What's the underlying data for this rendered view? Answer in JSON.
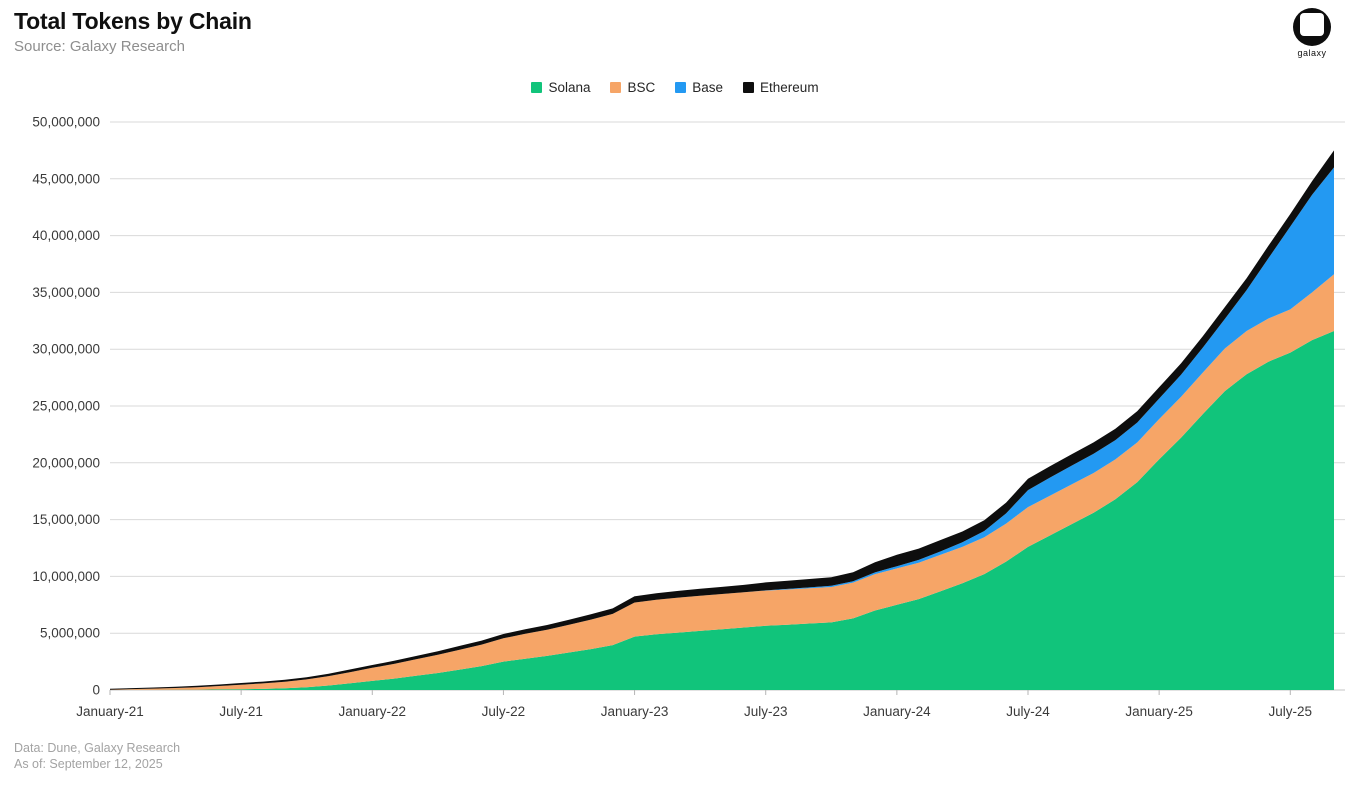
{
  "header": {
    "title": "Total Tokens by Chain",
    "subtitle": "Source: Galaxy Research"
  },
  "logo": {
    "brand": "galaxy"
  },
  "footer": {
    "line1": "Data: Dune, Galaxy Research",
    "line2": "As of: September 12, 2025"
  },
  "legend": [
    {
      "label": "Solana",
      "color": "#11c47b"
    },
    {
      "label": "BSC",
      "color": "#f6a567"
    },
    {
      "label": "Base",
      "color": "#2399f2"
    },
    {
      "label": "Ethereum",
      "color": "#0e0e0e"
    }
  ],
  "chart_data": {
    "type": "area",
    "stacked": true,
    "title": "Total Tokens by Chain",
    "unit": "tokens (values stored in millions)",
    "grid": "horizontal",
    "legend_position": "top-center",
    "ylim_millions": [
      0,
      50
    ],
    "x_months": [
      "Jan-21",
      "Feb-21",
      "Mar-21",
      "Apr-21",
      "May-21",
      "Jun-21",
      "Jul-21",
      "Aug-21",
      "Sep-21",
      "Oct-21",
      "Nov-21",
      "Dec-21",
      "Jan-22",
      "Feb-22",
      "Mar-22",
      "Apr-22",
      "May-22",
      "Jun-22",
      "Jul-22",
      "Aug-22",
      "Sep-22",
      "Oct-22",
      "Nov-22",
      "Dec-22",
      "Jan-23",
      "Feb-23",
      "Mar-23",
      "Apr-23",
      "May-23",
      "Jun-23",
      "Jul-23",
      "Aug-23",
      "Sep-23",
      "Oct-23",
      "Nov-23",
      "Dec-23",
      "Jan-24",
      "Feb-24",
      "Mar-24",
      "Apr-24",
      "May-24",
      "Jun-24",
      "Jul-24",
      "Aug-24",
      "Sep-24",
      "Oct-24",
      "Nov-24",
      "Dec-24",
      "Jan-25",
      "Feb-25",
      "Mar-25",
      "Apr-25",
      "May-25",
      "Jun-25",
      "Jul-25",
      "Aug-25",
      "Sep-25"
    ],
    "series": [
      {
        "name": "Solana",
        "color": "#11c47b",
        "values_millions": [
          0,
          0.01,
          0.01,
          0.02,
          0.03,
          0.05,
          0.07,
          0.1,
          0.15,
          0.25,
          0.4,
          0.6,
          0.8,
          1.0,
          1.25,
          1.5,
          1.8,
          2.1,
          2.5,
          2.75,
          3.0,
          3.3,
          3.6,
          3.95,
          4.7,
          4.9,
          5.05,
          5.2,
          5.35,
          5.5,
          5.65,
          5.75,
          5.85,
          5.95,
          6.3,
          7.0,
          7.5,
          8.0,
          8.7,
          9.4,
          10.2,
          11.3,
          12.6,
          13.6,
          14.6,
          15.6,
          16.8,
          18.3,
          20.3,
          22.2,
          24.3,
          26.3,
          27.8,
          28.9,
          29.7,
          30.8,
          31.6
        ]
      },
      {
        "name": "BSC",
        "color": "#f6a567",
        "values_millions": [
          0.03,
          0.07,
          0.11,
          0.16,
          0.22,
          0.3,
          0.4,
          0.48,
          0.57,
          0.68,
          0.82,
          0.98,
          1.15,
          1.3,
          1.45,
          1.6,
          1.75,
          1.9,
          2.05,
          2.2,
          2.3,
          2.45,
          2.6,
          2.75,
          3.0,
          3.05,
          3.08,
          3.1,
          3.1,
          3.1,
          3.1,
          3.1,
          3.1,
          3.12,
          3.15,
          3.2,
          3.2,
          3.2,
          3.2,
          3.2,
          3.25,
          3.35,
          3.5,
          3.5,
          3.5,
          3.5,
          3.5,
          3.5,
          3.55,
          3.6,
          3.65,
          3.75,
          3.8,
          3.8,
          3.8,
          4.2,
          5.0
        ]
      },
      {
        "name": "Base",
        "color": "#2399f2",
        "values_millions": [
          0,
          0,
          0,
          0,
          0,
          0,
          0,
          0,
          0,
          0,
          0,
          0,
          0,
          0,
          0,
          0,
          0,
          0,
          0,
          0,
          0,
          0,
          0,
          0,
          0,
          0,
          0,
          0,
          0,
          0,
          0.02,
          0.05,
          0.08,
          0.1,
          0.12,
          0.15,
          0.2,
          0.25,
          0.3,
          0.4,
          0.55,
          0.9,
          1.5,
          1.6,
          1.65,
          1.7,
          1.7,
          1.75,
          1.8,
          1.95,
          2.2,
          2.6,
          3.6,
          5.3,
          7.3,
          8.6,
          9.4
        ]
      },
      {
        "name": "Ethereum",
        "color": "#0e0e0e",
        "values_millions": [
          0.08,
          0.09,
          0.1,
          0.11,
          0.12,
          0.13,
          0.15,
          0.16,
          0.18,
          0.19,
          0.21,
          0.23,
          0.25,
          0.27,
          0.29,
          0.31,
          0.33,
          0.35,
          0.38,
          0.4,
          0.42,
          0.44,
          0.46,
          0.48,
          0.55,
          0.57,
          0.59,
          0.61,
          0.63,
          0.65,
          0.7,
          0.72,
          0.74,
          0.76,
          0.8,
          0.9,
          1.0,
          1.0,
          1.0,
          0.95,
          0.95,
          0.95,
          1.0,
          1.0,
          1.0,
          1.0,
          1.0,
          1.0,
          1.0,
          1.0,
          1.0,
          1.05,
          1.05,
          1.1,
          1.1,
          1.2,
          1.5
        ]
      }
    ],
    "y_ticks": [
      {
        "value_millions": 0,
        "label": "0"
      },
      {
        "value_millions": 5,
        "label": "5,000,000"
      },
      {
        "value_millions": 10,
        "label": "10,000,000"
      },
      {
        "value_millions": 15,
        "label": "15,000,000"
      },
      {
        "value_millions": 20,
        "label": "20,000,000"
      },
      {
        "value_millions": 25,
        "label": "25,000,000"
      },
      {
        "value_millions": 30,
        "label": "30,000,000"
      },
      {
        "value_millions": 35,
        "label": "35,000,000"
      },
      {
        "value_millions": 40,
        "label": "40,000,000"
      },
      {
        "value_millions": 45,
        "label": "45,000,000"
      },
      {
        "value_millions": 50,
        "label": "50,000,000"
      }
    ],
    "x_ticks": [
      {
        "month_index": 0,
        "label": "January-21"
      },
      {
        "month_index": 6,
        "label": "July-21"
      },
      {
        "month_index": 12,
        "label": "January-22"
      },
      {
        "month_index": 18,
        "label": "July-22"
      },
      {
        "month_index": 24,
        "label": "January-23"
      },
      {
        "month_index": 30,
        "label": "July-23"
      },
      {
        "month_index": 36,
        "label": "January-24"
      },
      {
        "month_index": 42,
        "label": "July-24"
      },
      {
        "month_index": 48,
        "label": "January-25"
      },
      {
        "month_index": 54,
        "label": "July-25"
      }
    ]
  },
  "style": {
    "gridline_color": "#d9d9d9",
    "axis_color": "#c6c6c6",
    "tick_color": "#b5b5b5",
    "axis_text_color": "#3a3a3a"
  }
}
